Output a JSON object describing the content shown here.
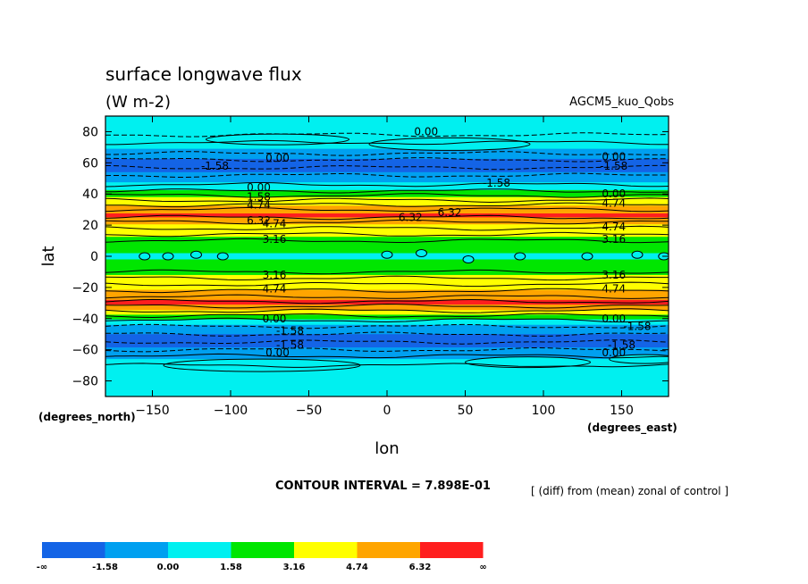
{
  "chart_data": {
    "type": "heatmap",
    "title": "surface longwave flux",
    "subtitle": "(W m-2)",
    "dataset_label": "AGCM5_kuo_Qobs",
    "xlabel": "lon",
    "ylabel": "lat",
    "x_unit_label": "(degrees_east)",
    "y_unit_label": "(degrees_north)",
    "xlim": [
      -180,
      180
    ],
    "ylim": [
      -90,
      90
    ],
    "x_ticks": [
      -150,
      -100,
      -50,
      0,
      50,
      100,
      150
    ],
    "y_ticks": [
      80,
      60,
      40,
      20,
      0,
      -20,
      -40,
      -60,
      -80
    ],
    "contour_interval_text": "CONTOUR INTERVAL = 7.898E-01",
    "description_text": "[ (diff) from (mean) zonal of control ]",
    "colorbar": {
      "labels": [
        "-∞",
        "-1.58",
        "0.00",
        "1.58",
        "3.16",
        "4.74",
        "6.32",
        "∞"
      ],
      "colors": [
        "#1464e6",
        "#00a0f0",
        "#00f0f0",
        "#00e600",
        "#ffff00",
        "#ffa500",
        "#ff1e1e"
      ]
    },
    "lat_profile": [
      {
        "lat": 90,
        "value": 0.6
      },
      {
        "lat": 85,
        "value": 0.4
      },
      {
        "lat": 80,
        "value": 0.0
      },
      {
        "lat": 75,
        "value": 0.5
      },
      {
        "lat": 70,
        "value": 0.3
      },
      {
        "lat": 65,
        "value": -1.2
      },
      {
        "lat": 60,
        "value": -2.0
      },
      {
        "lat": 55,
        "value": -1.8
      },
      {
        "lat": 50,
        "value": -0.8
      },
      {
        "lat": 45,
        "value": 0.8
      },
      {
        "lat": 40,
        "value": 2.5
      },
      {
        "lat": 35,
        "value": 4.0
      },
      {
        "lat": 30,
        "value": 5.5
      },
      {
        "lat": 26,
        "value": 6.8
      },
      {
        "lat": 22,
        "value": 5.2
      },
      {
        "lat": 18,
        "value": 4.1
      },
      {
        "lat": 14,
        "value": 3.4
      },
      {
        "lat": 10,
        "value": 2.8
      },
      {
        "lat": 5,
        "value": 2.0
      },
      {
        "lat": 0,
        "value": 1.3
      },
      {
        "lat": -5,
        "value": 2.0
      },
      {
        "lat": -10,
        "value": 2.9
      },
      {
        "lat": -15,
        "value": 3.6
      },
      {
        "lat": -20,
        "value": 4.3
      },
      {
        "lat": -25,
        "value": 5.6
      },
      {
        "lat": -30,
        "value": 6.8
      },
      {
        "lat": -34,
        "value": 5.0
      },
      {
        "lat": -38,
        "value": 3.0
      },
      {
        "lat": -42,
        "value": 0.8
      },
      {
        "lat": -46,
        "value": -0.9
      },
      {
        "lat": -52,
        "value": -1.9
      },
      {
        "lat": -58,
        "value": -1.7
      },
      {
        "lat": -63,
        "value": -0.6
      },
      {
        "lat": -68,
        "value": 0.4
      },
      {
        "lat": -75,
        "value": 0.7
      },
      {
        "lat": -82,
        "value": 0.4
      },
      {
        "lat": -90,
        "value": 0.2
      }
    ],
    "contour_labels": [
      {
        "text": "0.00",
        "lon": 25,
        "lat": 80
      },
      {
        "text": "0.00",
        "lon": -70,
        "lat": 63
      },
      {
        "text": "-1.58",
        "lon": -110,
        "lat": 58
      },
      {
        "text": "0.00",
        "lon": 145,
        "lat": 64
      },
      {
        "text": "-1.58",
        "lon": 145,
        "lat": 58
      },
      {
        "text": "-1.58",
        "lon": 70,
        "lat": 47
      },
      {
        "text": "0.00",
        "lon": -82,
        "lat": 44
      },
      {
        "text": "1.58",
        "lon": -82,
        "lat": 38
      },
      {
        "text": "4.74",
        "lon": -82,
        "lat": 33
      },
      {
        "text": "0.00",
        "lon": 145,
        "lat": 40
      },
      {
        "text": "4.74",
        "lon": 145,
        "lat": 34
      },
      {
        "text": "6.32",
        "lon": -82,
        "lat": 23
      },
      {
        "text": "4.74",
        "lon": -72,
        "lat": 21
      },
      {
        "text": "6.32",
        "lon": 15,
        "lat": 25
      },
      {
        "text": "6.32",
        "lon": 40,
        "lat": 28
      },
      {
        "text": "4.74",
        "lon": 145,
        "lat": 19
      },
      {
        "text": "3.16",
        "lon": -72,
        "lat": 11
      },
      {
        "text": "3.16",
        "lon": 145,
        "lat": 11
      },
      {
        "text": "3.16",
        "lon": -72,
        "lat": -12
      },
      {
        "text": "3.16",
        "lon": 145,
        "lat": -12
      },
      {
        "text": "4.74",
        "lon": -72,
        "lat": -21
      },
      {
        "text": "4.74",
        "lon": 145,
        "lat": -21
      },
      {
        "text": "0.00",
        "lon": -72,
        "lat": -40
      },
      {
        "text": "0.00",
        "lon": 145,
        "lat": -40
      },
      {
        "text": "-1.58",
        "lon": -62,
        "lat": -48
      },
      {
        "text": "-1.58",
        "lon": 160,
        "lat": -45
      },
      {
        "text": "-1.58",
        "lon": -62,
        "lat": -57
      },
      {
        "text": "-1.58",
        "lon": 150,
        "lat": -57
      },
      {
        "text": "0.00",
        "lon": -70,
        "lat": -62
      },
      {
        "text": "0.00",
        "lon": 145,
        "lat": -62
      }
    ],
    "equator_blobs": [
      {
        "lon": -155,
        "lat": 0
      },
      {
        "lon": -140,
        "lat": 0
      },
      {
        "lon": -122,
        "lat": 1
      },
      {
        "lon": -105,
        "lat": 0
      },
      {
        "lon": 0,
        "lat": 1
      },
      {
        "lon": 22,
        "lat": 2
      },
      {
        "lon": 52,
        "lat": -2
      },
      {
        "lon": 85,
        "lat": 0
      },
      {
        "lon": 128,
        "lat": 0
      },
      {
        "lon": 160,
        "lat": 1
      },
      {
        "lon": 177,
        "lat": 0
      }
    ]
  }
}
